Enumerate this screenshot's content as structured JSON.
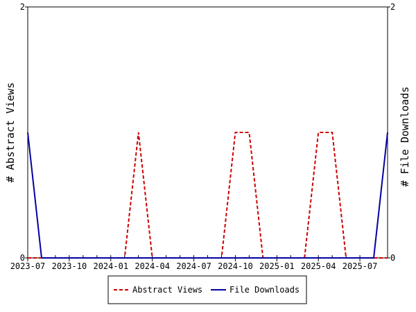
{
  "chart_data": {
    "type": "line",
    "title": "",
    "x": [
      "2023-07",
      "2023-08",
      "2023-09",
      "2023-10",
      "2023-11",
      "2023-12",
      "2024-01",
      "2024-02",
      "2024-03",
      "2024-04",
      "2024-05",
      "2024-06",
      "2024-07",
      "2024-08",
      "2024-09",
      "2024-10",
      "2024-11",
      "2024-12",
      "2025-01",
      "2025-02",
      "2025-03",
      "2025-04",
      "2025-05",
      "2025-06",
      "2025-07",
      "2025-08",
      "2025-09"
    ],
    "xticks": [
      "2023-07",
      "2023-10",
      "2024-01",
      "2024-04",
      "2024-07",
      "2024-10",
      "2025-01",
      "2025-04",
      "2025-07"
    ],
    "ylabel_left": "# Abstract Views",
    "ylabel_right": "# File Downloads",
    "ylim_left": [
      0,
      2
    ],
    "ylim_right": [
      0,
      2
    ],
    "yticks_left": [
      "0",
      "2"
    ],
    "yticks_right": [
      "0",
      "2"
    ],
    "grid": false,
    "legend_position": "bottom-center",
    "series": [
      {
        "name": "Abstract Views",
        "axis": "left",
        "color": "#cc0000",
        "style": "dashed",
        "values": [
          0,
          0,
          0,
          0,
          0,
          0,
          0,
          0,
          1,
          0,
          0,
          0,
          0,
          0,
          0,
          1,
          1,
          0,
          0,
          0,
          0,
          1,
          1,
          0,
          0,
          0,
          0
        ]
      },
      {
        "name": "File Downloads",
        "axis": "right",
        "color": "#0000a0",
        "style": "solid",
        "values": [
          1,
          0,
          0,
          0,
          0,
          0,
          0,
          0,
          0,
          0,
          0,
          0,
          0,
          0,
          0,
          0,
          0,
          0,
          0,
          0,
          0,
          0,
          0,
          0,
          0,
          0,
          1
        ]
      }
    ]
  }
}
